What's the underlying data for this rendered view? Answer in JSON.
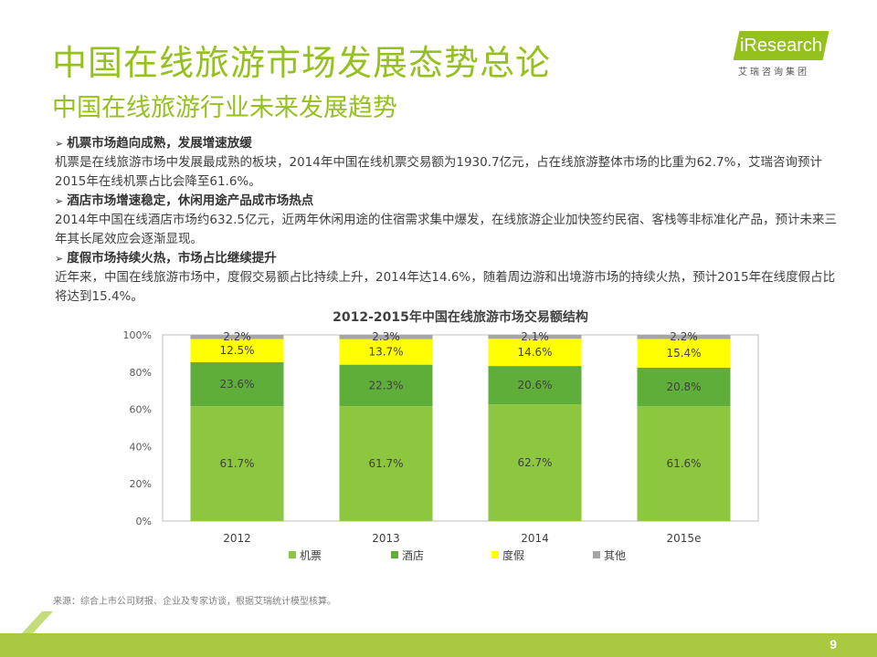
{
  "header": {
    "title": "中国在线旅游市场发展态势总论",
    "subtitle": "中国在线旅游行业未来发展趋势"
  },
  "logo": {
    "text": "iResearch",
    "subtext": "艾瑞咨询集团"
  },
  "bullets": [
    {
      "heading": "机票市场趋向成熟，发展增速放缓",
      "body": "机票是在线旅游市场中发展最成熟的板块，2014年中国在线机票交易额为1930.7亿元，占在线旅游整体市场的比重为62.7%，艾瑞咨询预计2015年在线机票占比会降至61.6%。"
    },
    {
      "heading": "酒店市场增速稳定，休闲用途产品成市场热点",
      "body": "2014年中国在线酒店市场约632.5亿元，近两年休闲用途的住宿需求集中爆发，在线旅游企业加快签约民宿、客栈等非标准化产品，预计未来三年其长尾效应会逐渐显现。"
    },
    {
      "heading": "度假市场持续火热，市场占比继续提升",
      "body": "近年来，中国在线旅游市场中，度假交易额占比持续上升，2014年达14.6%，随着周边游和出境游市场的持续火热，预计2015年在线度假占比将达到15.4%。"
    }
  ],
  "chart_data": {
    "type": "bar",
    "stacked": true,
    "title": "2012-2015年中国在线旅游市场交易额结构",
    "categories": [
      "2012",
      "2013",
      "2014",
      "2015e"
    ],
    "series": [
      {
        "name": "机票",
        "color": "#8dc63f",
        "values": [
          61.7,
          61.7,
          62.7,
          61.6
        ]
      },
      {
        "name": "酒店",
        "color": "#5fae3a",
        "values": [
          23.6,
          22.3,
          20.6,
          20.8
        ]
      },
      {
        "name": "度假",
        "color": "#ffff00",
        "values": [
          12.5,
          13.7,
          14.6,
          15.4
        ]
      },
      {
        "name": "其他",
        "color": "#a6a6a6",
        "values": [
          2.2,
          2.3,
          2.1,
          2.2
        ]
      }
    ],
    "ylim": [
      0,
      100
    ],
    "yticks": [
      "0%",
      "20%",
      "40%",
      "60%",
      "80%",
      "100%"
    ],
    "value_suffix": "%",
    "legend_position": "bottom"
  },
  "source": "来源：综合上市公司财报、企业及专家访谈，根据艾瑞统计模型核算。",
  "page_number": "9"
}
